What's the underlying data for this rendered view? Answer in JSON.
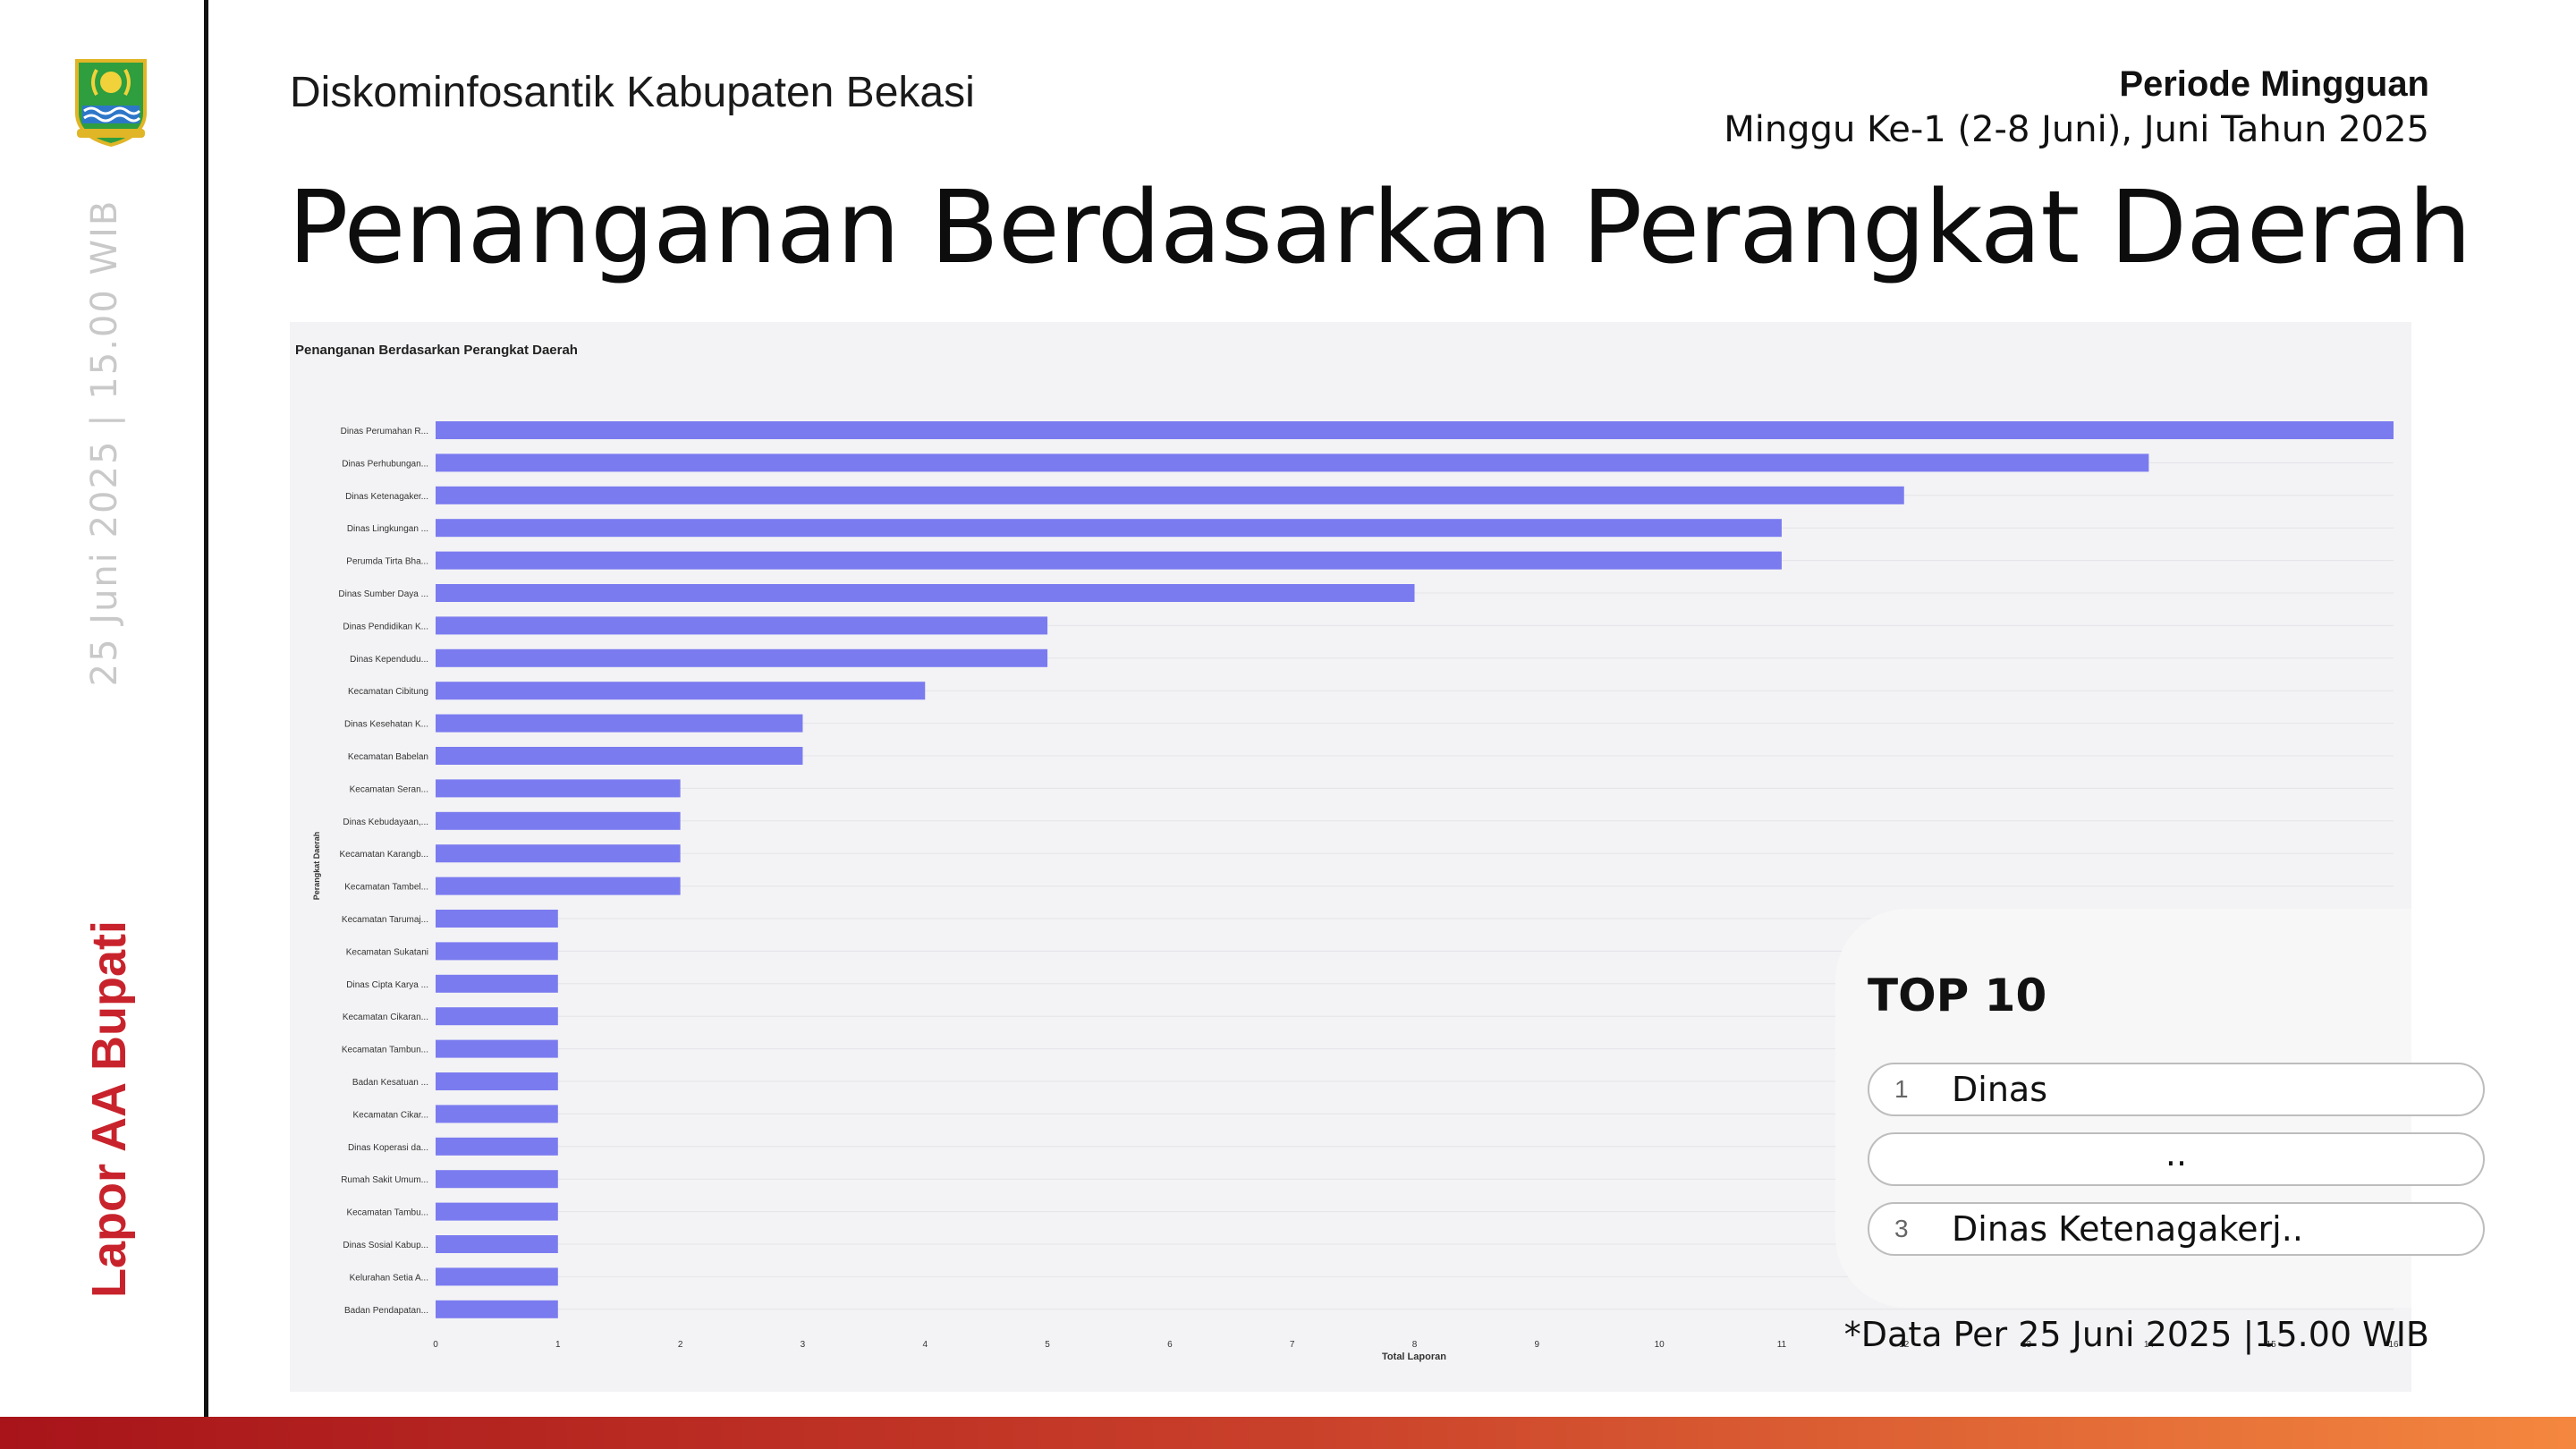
{
  "header": {
    "org": "Diskominfosantik Kabupaten Bekasi",
    "period_title": "Periode Mingguan",
    "period_sub": "Minggu Ke-1 (2-8 Juni), Juni Tahun 2025",
    "title": "Penanganan Berdasarkan Perangkat Daerah"
  },
  "sidebar": {
    "date": "25 Juni 2025 | 15.00 WIB",
    "brand": "Lapor AA Bupati",
    "logo_icon": "bekasi-regency-emblem-icon"
  },
  "chart_data": {
    "type": "bar",
    "orientation": "horizontal",
    "title": "Penanganan Berdasarkan Perangkat Daerah",
    "xlabel": "Total Laporan",
    "ylabel": "Perangkat Daerah",
    "xlim": [
      0,
      16
    ],
    "xticks": [
      "0",
      "1",
      "2",
      "3",
      "4",
      "5",
      "6",
      "7",
      "8",
      "9",
      "10",
      "11",
      "12",
      "13",
      "14",
      "15",
      "16"
    ],
    "grid": true,
    "bar_color": "#7b7bf0",
    "categories": [
      "Dinas Perumahan R...",
      "Dinas Perhubungan...",
      "Dinas Ketenagaker...",
      "Dinas Lingkungan ...",
      "Perumda Tirta Bha...",
      "Dinas Sumber Daya ...",
      "Dinas Pendidikan K...",
      "Dinas Kependudu...",
      "Kecamatan Cibitung",
      "Dinas Kesehatan K...",
      "Kecamatan Babelan",
      "Kecamatan Seran...",
      "Dinas Kebudayaan,...",
      "Kecamatan Karangb...",
      "Kecamatan Tambel...",
      "Kecamatan Tarumaj...",
      "Kecamatan Sukatani",
      "Dinas Cipta Karya ...",
      "Kecamatan Cikaran...",
      "Kecamatan Tambun...",
      "Badan Kesatuan ...",
      "Kecamatan Cikar...",
      "Dinas Koperasi da...",
      "Rumah Sakit Umum...",
      "Kecamatan Tambu...",
      "Dinas Sosial Kabup...",
      "Kelurahan Setia A...",
      "Badan Pendapatan..."
    ],
    "values": [
      16,
      14,
      12,
      11,
      11,
      8,
      5,
      5,
      4,
      3,
      3,
      2,
      2,
      2,
      2,
      1,
      1,
      1,
      1,
      1,
      1,
      1,
      1,
      1,
      1,
      1,
      1,
      1
    ]
  },
  "top10": {
    "title": "TOP 10",
    "items": [
      {
        "rank": "1",
        "label": "Dinas"
      },
      {
        "rank": "",
        "label": ".."
      },
      {
        "rank": "3",
        "label": "Dinas Ketenagakerj.."
      }
    ]
  },
  "footnote": "*Data Per 25 Juni 2025 |15.00 WIB"
}
